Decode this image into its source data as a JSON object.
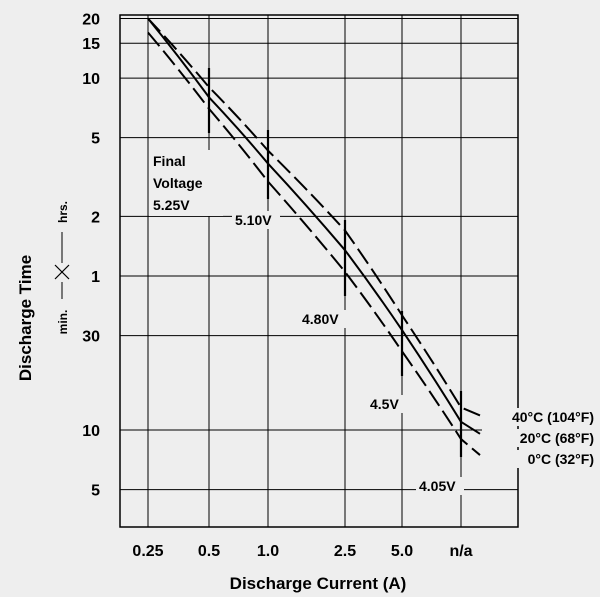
{
  "chart_data": {
    "type": "line",
    "title": "",
    "xlabel": "Discharge Current (A)",
    "ylabel": "Discharge Time",
    "ylabel_units": {
      "lower": "min.",
      "upper": "hrs."
    },
    "x_ticks": [
      "0.25",
      "0.5",
      "1.0",
      "2.5",
      "5.0",
      "n/a"
    ],
    "y_ticks_hours": [
      "20",
      "15",
      "10",
      "5",
      "2",
      "1"
    ],
    "y_ticks_minutes": [
      "30",
      "10",
      "5"
    ],
    "grid": true,
    "series": [
      {
        "name": "40°C (104°F)",
        "style": "dashed",
        "points": [
          [
            "0.25",
            "20 hrs"
          ],
          [
            "0.5",
            "9 hrs"
          ],
          [
            "1.0",
            "4.3 hrs"
          ],
          [
            "2.5",
            "1.7 hrs"
          ],
          [
            "5.0",
            "38 min"
          ],
          [
            "n/a",
            "13 min"
          ]
        ]
      },
      {
        "name": "20°C (68°F)",
        "style": "solid",
        "points": [
          [
            "0.25",
            "20 hrs"
          ],
          [
            "0.5",
            "8 hrs"
          ],
          [
            "1.0",
            "3.7 hrs"
          ],
          [
            "2.5",
            "1.35 hrs"
          ],
          [
            "5.0",
            "32 min"
          ],
          [
            "n/a",
            "11 min"
          ]
        ]
      },
      {
        "name": "0°C (32°F)",
        "style": "dashed",
        "points": [
          [
            "0.25",
            "17 hrs"
          ],
          [
            "0.5",
            "7 hrs"
          ],
          [
            "1.0",
            "3 hrs"
          ],
          [
            "2.5",
            "1.05 hrs"
          ],
          [
            "5.0",
            "25 min"
          ],
          [
            "n/a",
            "9 min"
          ]
        ]
      }
    ],
    "final_voltage_title": "Final Voltage",
    "final_voltage_markers": [
      {
        "label": "5.25V",
        "x": "0.5"
      },
      {
        "label": "5.10V",
        "x": "1.0"
      },
      {
        "label": "4.80V",
        "x": "2.5"
      },
      {
        "label": "4.5V",
        "x": "5.0"
      },
      {
        "label": "4.05V",
        "x": "n/a"
      }
    ],
    "legend_placement": "right"
  }
}
